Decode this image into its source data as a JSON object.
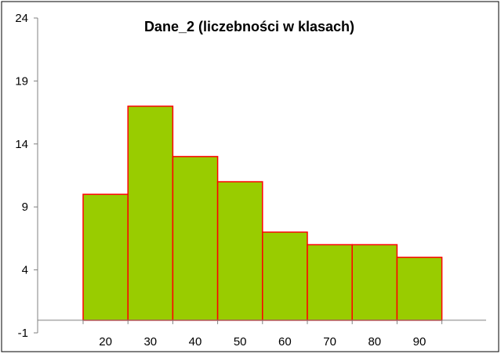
{
  "chart_data": {
    "type": "bar",
    "title": "Dane_2 (liczebności w klasach)",
    "xlabel": "",
    "ylabel": "",
    "categories": [
      "20",
      "30",
      "40",
      "50",
      "60",
      "70",
      "80",
      "90"
    ],
    "values": [
      10,
      17,
      13,
      11,
      7,
      6,
      6,
      5
    ],
    "ylim": [
      -1,
      24
    ],
    "yticks": [
      "24",
      "19",
      "14",
      "9",
      "4",
      "-1"
    ],
    "grid": false,
    "legend": "none",
    "colors": {
      "bar_fill": "#99CC00",
      "bar_edge": "#FF0000",
      "axis": "#808080"
    }
  }
}
